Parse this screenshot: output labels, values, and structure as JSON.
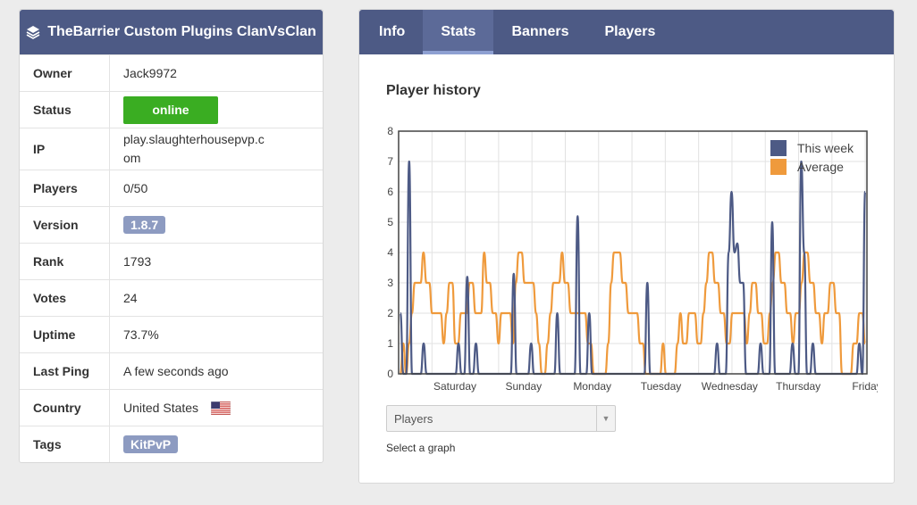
{
  "server": {
    "title": "TheBarrier Custom Plugins ClanVsClan",
    "rows": [
      {
        "label": "Owner",
        "value": "Jack9972"
      },
      {
        "label": "Status",
        "value": "online"
      },
      {
        "label": "IP",
        "value": "play.slaughterhousepvp.com"
      },
      {
        "label": "Players",
        "value": "0/50"
      },
      {
        "label": "Version",
        "value": "1.8.7"
      },
      {
        "label": "Rank",
        "value": "1793"
      },
      {
        "label": "Votes",
        "value": "24"
      },
      {
        "label": "Uptime",
        "value": "73.7%"
      },
      {
        "label": "Last Ping",
        "value": "A few seconds ago"
      },
      {
        "label": "Country",
        "value": "United States"
      },
      {
        "label": "Tags",
        "value": "KitPvP"
      }
    ]
  },
  "tabs": [
    "Info",
    "Stats",
    "Banners",
    "Players"
  ],
  "active_tab": "Stats",
  "chart_title": "Player history",
  "graph_select": {
    "value": "Players",
    "hint": "Select a graph"
  },
  "colors": {
    "header": "#4d5a85",
    "this_week": "#4d5a85",
    "average": "#ef9a3c",
    "online": "#3aad22"
  },
  "chart_data": {
    "type": "line",
    "title": "Player history",
    "ylim": [
      0,
      8
    ],
    "yticks": [
      0,
      1,
      2,
      3,
      4,
      5,
      6,
      7,
      8
    ],
    "xticks": [
      "Saturday",
      "Sunday",
      "Monday",
      "Tuesday",
      "Wednesday",
      "Thursday",
      "Friday"
    ],
    "legend_position": "top-right",
    "grid": true,
    "series": [
      {
        "name": "This week",
        "color": "#4d5a85",
        "values": [
          2,
          0,
          0,
          7,
          0,
          0,
          0,
          0,
          1,
          0,
          0,
          0,
          0,
          0,
          0,
          0,
          0,
          0,
          0,
          0,
          1,
          0,
          0,
          3.2,
          0,
          0,
          1,
          0,
          0,
          0,
          0,
          0,
          0,
          0,
          0,
          0,
          0,
          0,
          0,
          3.3,
          0,
          0,
          0,
          0,
          0,
          1,
          0,
          0,
          0,
          0,
          0,
          0,
          0,
          0,
          2,
          0,
          0,
          0,
          0,
          0,
          0,
          5.2,
          0,
          0,
          0,
          2,
          0,
          0,
          0,
          0,
          0,
          0,
          0,
          0,
          0,
          0,
          0,
          0,
          0,
          0,
          0,
          0,
          0,
          0,
          0,
          3,
          0,
          0,
          0,
          0,
          0,
          0,
          0,
          0,
          0,
          0,
          0,
          0,
          0,
          0,
          0,
          0,
          0,
          0,
          0,
          0,
          0,
          0,
          0,
          1,
          0,
          0,
          0,
          4,
          6,
          4,
          4.3,
          3,
          3,
          0,
          0,
          0,
          0,
          0,
          1,
          0,
          0,
          0,
          5,
          0,
          0,
          0,
          0,
          0,
          0,
          1,
          0,
          0,
          7,
          4,
          0,
          0,
          1,
          0,
          0,
          0,
          0,
          0,
          0,
          0,
          0,
          0,
          0,
          0,
          0,
          0,
          0,
          0,
          1,
          0,
          6
        ]
      },
      {
        "name": "Average",
        "color": "#ef9a3c",
        "values": [
          0,
          1,
          0,
          1,
          2,
          3,
          3,
          3,
          4,
          3,
          3,
          2,
          2,
          2,
          2,
          1,
          2,
          3,
          3,
          1,
          1,
          2,
          2,
          2,
          3,
          3,
          2,
          2,
          2,
          4,
          3,
          3,
          2,
          2,
          1,
          2,
          2,
          2,
          2,
          1,
          3,
          4,
          4,
          3,
          3,
          3,
          3,
          2,
          1,
          0,
          0,
          1,
          2,
          3,
          3,
          3,
          4,
          3,
          3,
          2,
          2,
          2,
          2,
          2,
          2,
          1,
          1,
          0,
          0,
          0,
          0,
          0,
          1,
          3,
          4,
          4,
          4,
          3,
          3,
          2,
          2,
          2,
          2,
          1,
          1,
          0,
          0,
          0,
          0,
          0,
          0,
          1,
          0,
          0,
          0,
          0,
          1,
          2,
          1,
          1,
          2,
          2,
          2,
          1,
          1,
          2,
          3,
          4,
          4,
          3,
          3,
          2,
          2,
          1,
          1,
          2,
          2,
          2,
          2,
          2,
          1,
          2,
          3,
          3,
          2,
          2,
          1,
          1,
          2,
          3,
          4,
          4,
          3,
          3,
          2,
          2,
          1,
          2,
          2,
          3,
          4,
          4,
          3,
          3,
          2,
          2,
          1,
          2,
          2,
          3,
          3,
          2,
          2,
          0,
          0,
          0,
          0,
          1,
          1,
          2,
          2,
          1
        ]
      }
    ]
  }
}
